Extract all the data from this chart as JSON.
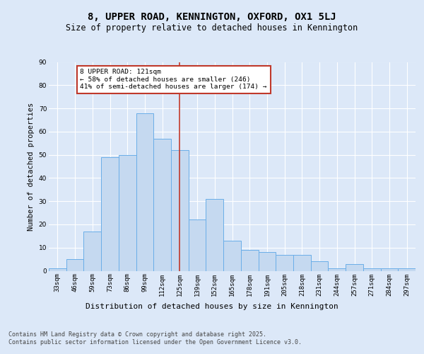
{
  "title": "8, UPPER ROAD, KENNINGTON, OXFORD, OX1 5LJ",
  "subtitle": "Size of property relative to detached houses in Kennington",
  "xlabel": "Distribution of detached houses by size in Kennington",
  "ylabel": "Number of detached properties",
  "categories": [
    "33sqm",
    "46sqm",
    "59sqm",
    "73sqm",
    "86sqm",
    "99sqm",
    "112sqm",
    "125sqm",
    "139sqm",
    "152sqm",
    "165sqm",
    "178sqm",
    "191sqm",
    "205sqm",
    "218sqm",
    "231sqm",
    "244sqm",
    "257sqm",
    "271sqm",
    "284sqm",
    "297sqm"
  ],
  "values": [
    1,
    5,
    17,
    49,
    50,
    68,
    57,
    52,
    22,
    31,
    13,
    9,
    8,
    7,
    7,
    4,
    1,
    3,
    1,
    1,
    1
  ],
  "bar_color": "#c5d9f0",
  "bar_edge_color": "#6aaee8",
  "vline_color": "#c0392b",
  "annotation_text": "8 UPPER ROAD: 121sqm\n← 58% of detached houses are smaller (246)\n41% of semi-detached houses are larger (174) →",
  "annotation_box_color": "#ffffff",
  "annotation_box_edge": "#c0392b",
  "bg_color": "#dce8f8",
  "plot_bg_color": "#dce8f8",
  "grid_color": "#ffffff",
  "ylim": [
    0,
    90
  ],
  "yticks": [
    0,
    10,
    20,
    30,
    40,
    50,
    60,
    70,
    80,
    90
  ],
  "footer_text": "Contains HM Land Registry data © Crown copyright and database right 2025.\nContains public sector information licensed under the Open Government Licence v3.0.",
  "title_fontsize": 10,
  "subtitle_fontsize": 8.5,
  "xlabel_fontsize": 8,
  "ylabel_fontsize": 7.5,
  "tick_fontsize": 6.5,
  "footer_fontsize": 6
}
